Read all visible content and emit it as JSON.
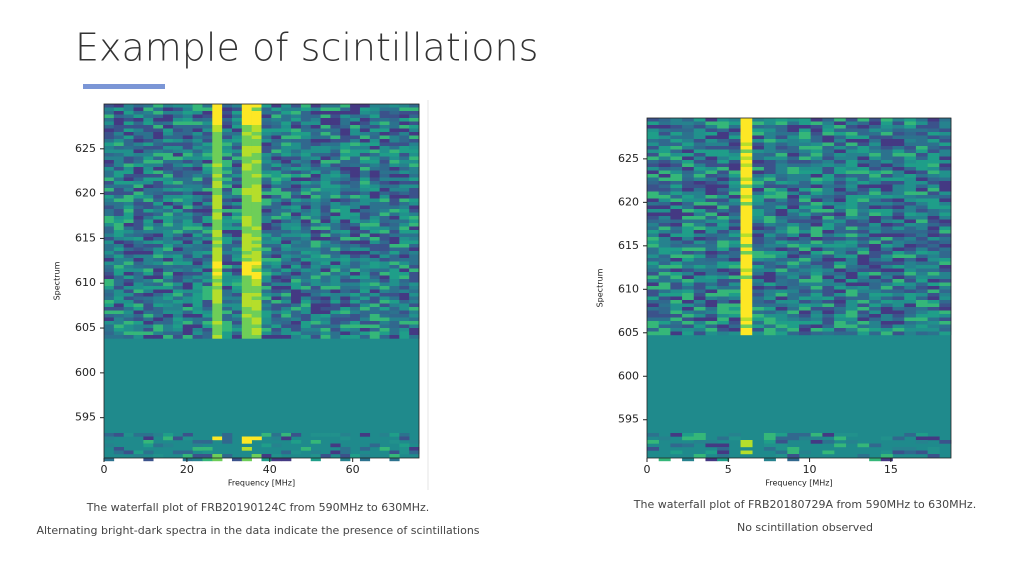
{
  "slide": {
    "title": "Example of scintillations",
    "figures": [
      {
        "xlabel": "Frequency [MHz]",
        "ylabel": "Spectrum",
        "xlim": [
          0,
          76
        ],
        "ylim": [
          590.5,
          630
        ],
        "xticks": [
          0,
          20,
          40,
          60
        ],
        "yticks": [
          595,
          600,
          605,
          610,
          615,
          620,
          625
        ],
        "caption": [
          "The waterfall plot of FRB20190124C from 590MHz to 630MHz.",
          "Alternating bright-dark spectra in the data indicate the presence of scintillations"
        ]
      },
      {
        "xlabel": "Frequency [MHz]",
        "ylabel": "Spectrum",
        "xlim": [
          0,
          18.7
        ],
        "ylim": [
          590.6,
          629.7
        ],
        "xticks": [
          0,
          5,
          10,
          15
        ],
        "yticks": [
          595,
          600,
          605,
          610,
          615,
          620,
          625
        ],
        "caption": [
          "The waterfall plot of FRB20180729A from 590MHz to 630MHz.",
          "No scintillation observed"
        ]
      }
    ]
  }
}
